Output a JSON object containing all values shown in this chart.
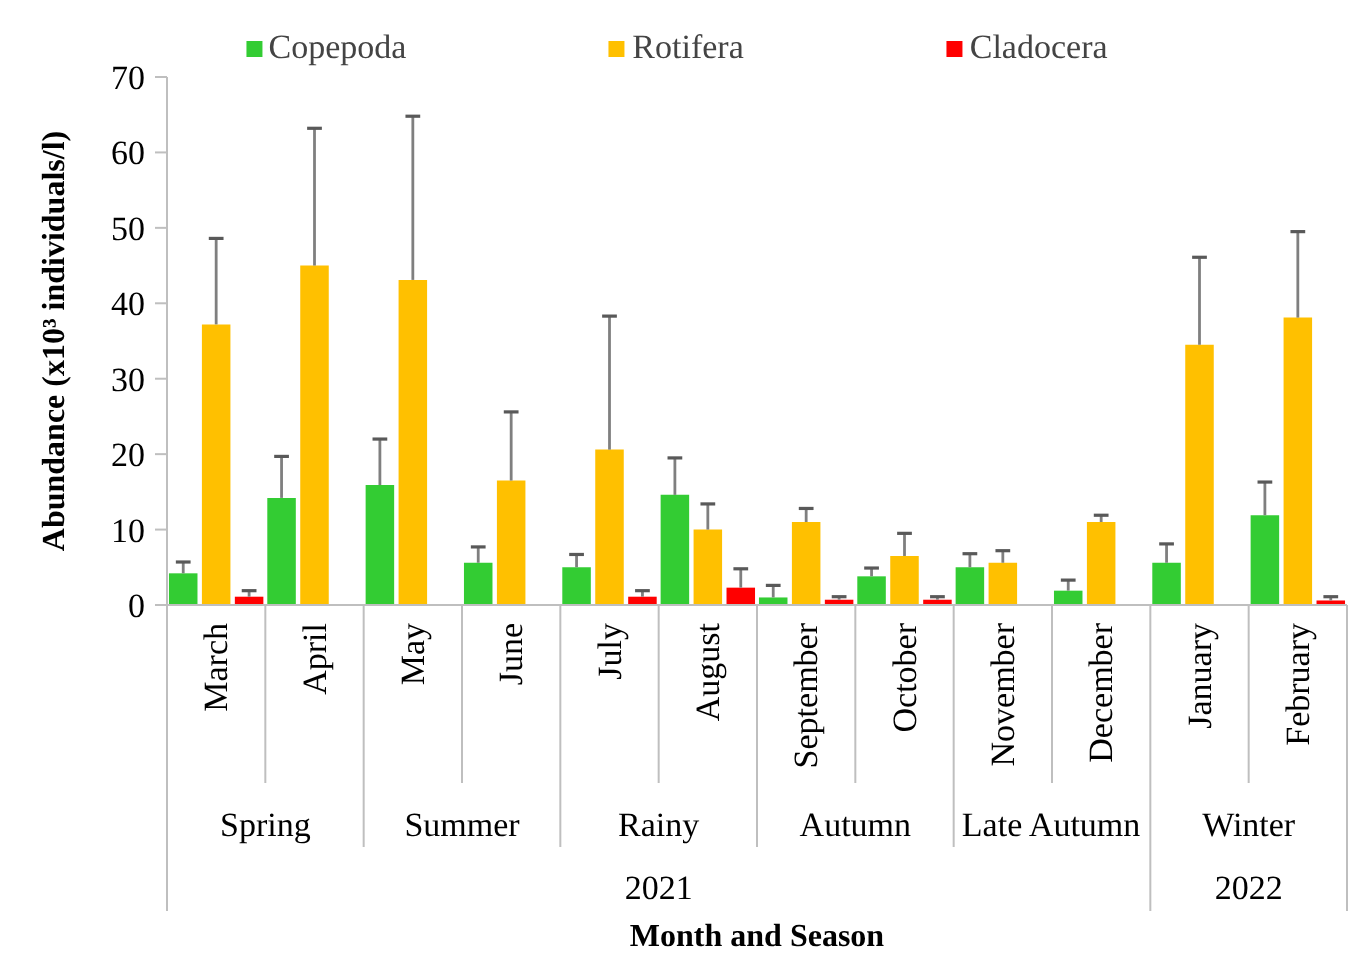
{
  "chart_data": {
    "type": "bar",
    "xlabel": "Month and Season",
    "ylabel": "Abundance (x10³ individuals/l)",
    "categories": [
      "March",
      "April",
      "May",
      "June",
      "July",
      "August",
      "September",
      "October",
      "November",
      "December",
      "January",
      "February"
    ],
    "series": [
      {
        "name": "Copepoda",
        "color": "#33cc33",
        "values": [
          4.2,
          14.2,
          15.9,
          5.6,
          5.0,
          14.6,
          1.0,
          3.8,
          5.0,
          1.9,
          5.6,
          11.9
        ],
        "errors": [
          [
            4.2,
            5.7
          ],
          [
            14.2,
            19.7
          ],
          [
            15.9,
            22.0
          ],
          [
            5.6,
            7.7
          ],
          [
            5.0,
            6.7
          ],
          [
            14.6,
            19.5
          ],
          [
            1.0,
            2.6
          ],
          [
            3.8,
            4.9
          ],
          [
            5.0,
            6.8
          ],
          [
            1.9,
            3.3
          ],
          [
            5.6,
            8.1
          ],
          [
            11.9,
            16.3
          ]
        ]
      },
      {
        "name": "Rotifera",
        "color": "#ffc000",
        "values": [
          37.2,
          45.0,
          43.1,
          16.5,
          20.6,
          10.0,
          11.0,
          6.5,
          5.6,
          11.0,
          34.5,
          38.1
        ],
        "errors": [
          [
            37.2,
            48.6
          ],
          [
            45.0,
            63.2
          ],
          [
            43.1,
            64.8
          ],
          [
            16.5,
            25.6
          ],
          [
            20.6,
            38.3
          ],
          [
            10.0,
            13.4
          ],
          [
            11.0,
            12.8
          ],
          [
            6.5,
            9.5
          ],
          [
            5.6,
            7.2
          ],
          [
            11.0,
            11.9
          ],
          [
            34.5,
            46.1
          ],
          [
            38.1,
            49.5
          ]
        ]
      },
      {
        "name": "Cladocera",
        "color": "#ff0000",
        "values": [
          1.1,
          null,
          null,
          null,
          1.1,
          2.3,
          0.7,
          0.7,
          null,
          null,
          null,
          0.6
        ],
        "errors": [
          [
            1.1,
            1.9
          ],
          null,
          null,
          null,
          [
            1.1,
            1.9
          ],
          [
            2.3,
            4.8
          ],
          [
            0.7,
            1.1
          ],
          [
            0.7,
            1.1
          ],
          null,
          null,
          null,
          [
            0.6,
            1.1
          ]
        ]
      }
    ],
    "ylim": [
      0,
      70
    ],
    "yticks": [
      0,
      10,
      20,
      30,
      40,
      50,
      60,
      70
    ],
    "grid": false,
    "legend": "top",
    "annotations": [
      "Spring",
      "Summer",
      "Rainy",
      "Autumn",
      "Late Autumn",
      "Winter",
      "2021",
      "2022"
    ]
  }
}
